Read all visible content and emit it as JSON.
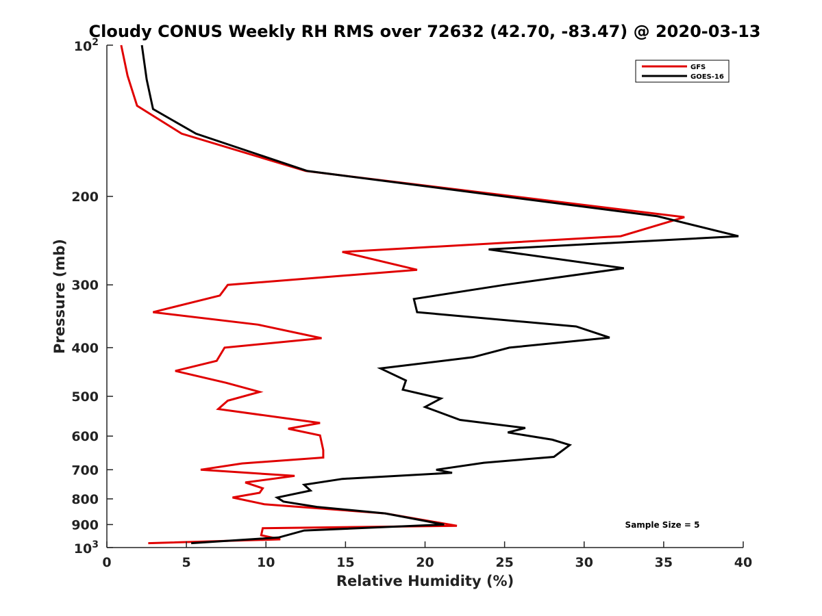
{
  "chart_data": {
    "type": "line",
    "title": "Cloudy CONUS Weekly RH RMS over 72632 (42.70, -83.47) @ 2020-03-13",
    "xlabel": "Relative Humidity (%)",
    "ylabel": "Pressure (mb)",
    "xlim": [
      0,
      40
    ],
    "ylim": [
      100,
      1000
    ],
    "y_scale": "log",
    "y_reversed": true,
    "grid": false,
    "legend_position": "top-right",
    "x_ticks": [
      "0",
      "5",
      "10",
      "15",
      "20",
      "25",
      "30",
      "35",
      "40"
    ],
    "y_ticks": [
      {
        "value": 100,
        "base": "10",
        "exp": "2"
      },
      {
        "value": 200,
        "label": "200"
      },
      {
        "value": 300,
        "label": "300"
      },
      {
        "value": 400,
        "label": "400"
      },
      {
        "value": 500,
        "label": "500"
      },
      {
        "value": 600,
        "label": "600"
      },
      {
        "value": 700,
        "label": "700"
      },
      {
        "value": 800,
        "label": "800"
      },
      {
        "value": 900,
        "label": "900"
      },
      {
        "value": 1000,
        "base": "10",
        "exp": "3"
      }
    ],
    "annotation": "Sample Size = 5",
    "series": [
      {
        "name": "GFS",
        "color": "#e00000",
        "points": [
          [
            0.9,
            100
          ],
          [
            1.3,
            115
          ],
          [
            1.9,
            132
          ],
          [
            4.7,
            150
          ],
          [
            12.5,
            178
          ],
          [
            36.3,
            220
          ],
          [
            32.3,
            240
          ],
          [
            14.8,
            258
          ],
          [
            19.5,
            280
          ],
          [
            7.6,
            300
          ],
          [
            7.1,
            315
          ],
          [
            2.9,
            340
          ],
          [
            9.5,
            360
          ],
          [
            13.5,
            383
          ],
          [
            7.4,
            400
          ],
          [
            6.9,
            425
          ],
          [
            4.3,
            445
          ],
          [
            7.5,
            470
          ],
          [
            9.6,
            490
          ],
          [
            7.6,
            510
          ],
          [
            7.0,
            530
          ],
          [
            13.4,
            565
          ],
          [
            11.4,
            580
          ],
          [
            13.4,
            598
          ],
          [
            13.5,
            618
          ],
          [
            13.6,
            640
          ],
          [
            13.6,
            662
          ],
          [
            8.5,
            680
          ],
          [
            5.9,
            700
          ],
          [
            11.8,
            720
          ],
          [
            8.7,
            742
          ],
          [
            9.8,
            762
          ],
          [
            9.6,
            778
          ],
          [
            7.9,
            795
          ],
          [
            9.9,
            820
          ],
          [
            17.5,
            855
          ],
          [
            22.0,
            905
          ],
          [
            9.8,
            915
          ],
          [
            9.7,
            945
          ],
          [
            10.9,
            963
          ],
          [
            2.6,
            980
          ]
        ]
      },
      {
        "name": "GOES-16",
        "color": "#000000",
        "points": [
          [
            2.2,
            100
          ],
          [
            2.5,
            117
          ],
          [
            2.9,
            134
          ],
          [
            5.6,
            150
          ],
          [
            12.6,
            178
          ],
          [
            34.6,
            219
          ],
          [
            39.7,
            240
          ],
          [
            24.0,
            255
          ],
          [
            32.5,
            278
          ],
          [
            25.0,
            300
          ],
          [
            19.3,
            320
          ],
          [
            19.5,
            340
          ],
          [
            29.5,
            363
          ],
          [
            31.6,
            382
          ],
          [
            25.3,
            400
          ],
          [
            23.0,
            418
          ],
          [
            17.2,
            440
          ],
          [
            18.8,
            465
          ],
          [
            18.6,
            485
          ],
          [
            21.0,
            505
          ],
          [
            20.0,
            525
          ],
          [
            22.2,
            557
          ],
          [
            26.3,
            578
          ],
          [
            25.2,
            590
          ],
          [
            28.0,
            610
          ],
          [
            29.1,
            625
          ],
          [
            28.1,
            660
          ],
          [
            23.7,
            678
          ],
          [
            20.7,
            700
          ],
          [
            21.7,
            710
          ],
          [
            14.8,
            730
          ],
          [
            12.4,
            750
          ],
          [
            12.8,
            770
          ],
          [
            10.7,
            795
          ],
          [
            11.1,
            810
          ],
          [
            13.2,
            830
          ],
          [
            17.5,
            855
          ],
          [
            21.2,
            900
          ],
          [
            12.4,
            925
          ],
          [
            10.8,
            955
          ],
          [
            5.3,
            980
          ]
        ]
      }
    ]
  }
}
